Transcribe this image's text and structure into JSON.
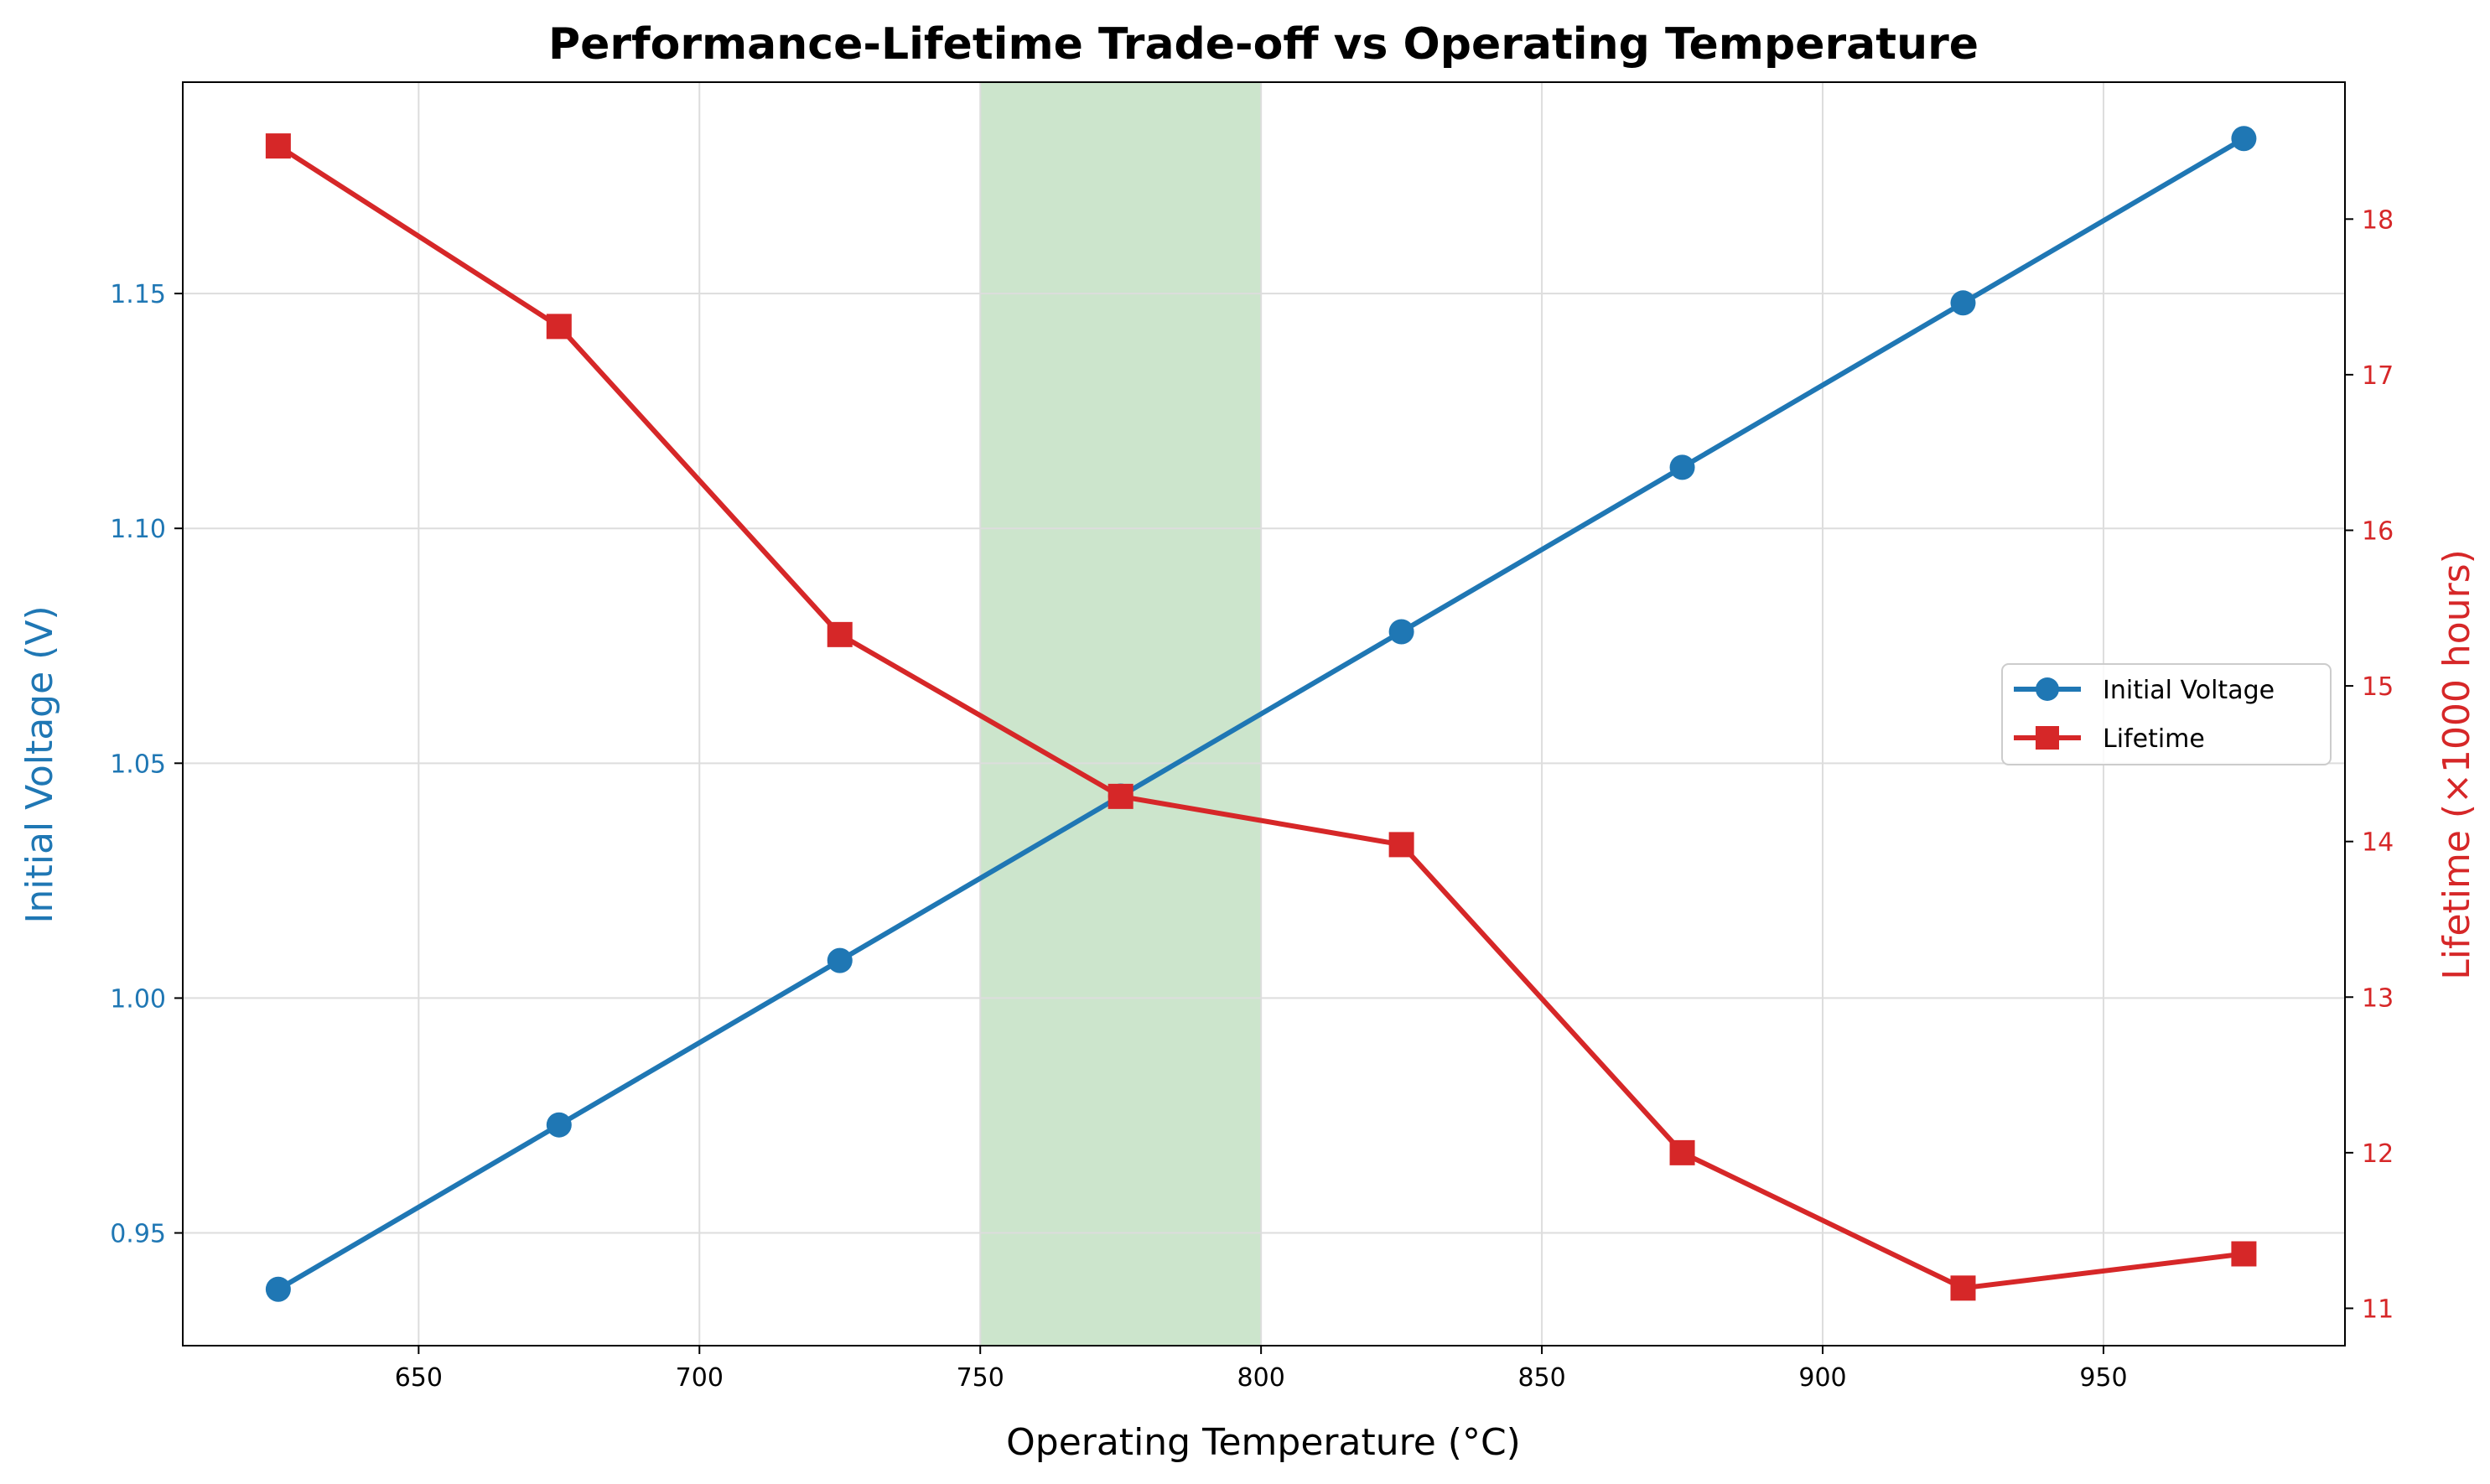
{
  "chart_data": {
    "type": "line",
    "title": "Performance-Lifetime Trade-off vs Operating Temperature",
    "xlabel": "Operating Temperature (°C)",
    "ylabel_left": "Initial Voltage (V)",
    "ylabel_right": "Lifetime (×1000 hours)",
    "x": [
      625,
      675,
      725,
      775,
      825,
      875,
      925,
      975
    ],
    "xlim": [
      608,
      993
    ],
    "ylim_left": [
      0.926,
      1.195
    ],
    "ylim_right": [
      10.76,
      18.88
    ],
    "x_ticks": [
      650,
      700,
      750,
      800,
      850,
      900,
      950
    ],
    "y_ticks_left": [
      0.95,
      1.0,
      1.05,
      1.1,
      1.15
    ],
    "y_tick_labels_left": [
      "0.95",
      "1.00",
      "1.05",
      "1.10",
      "1.15"
    ],
    "y_ticks_right": [
      11,
      12,
      13,
      14,
      15,
      16,
      17,
      18
    ],
    "grid": true,
    "legend_position": "center-right",
    "highlight_band": {
      "x_start": 750,
      "x_end": 800,
      "color": "#cce5cc"
    },
    "series": [
      {
        "name": "Initial Voltage",
        "axis": "left",
        "marker": "circle",
        "color": "#1f77b4",
        "values": [
          0.938,
          0.973,
          1.008,
          1.043,
          1.078,
          1.113,
          1.148,
          1.183
        ]
      },
      {
        "name": "Lifetime",
        "axis": "right",
        "marker": "square",
        "color": "#d62728",
        "values": [
          18.47,
          17.31,
          15.33,
          14.29,
          13.98,
          12.0,
          11.13,
          11.35
        ]
      }
    ]
  }
}
